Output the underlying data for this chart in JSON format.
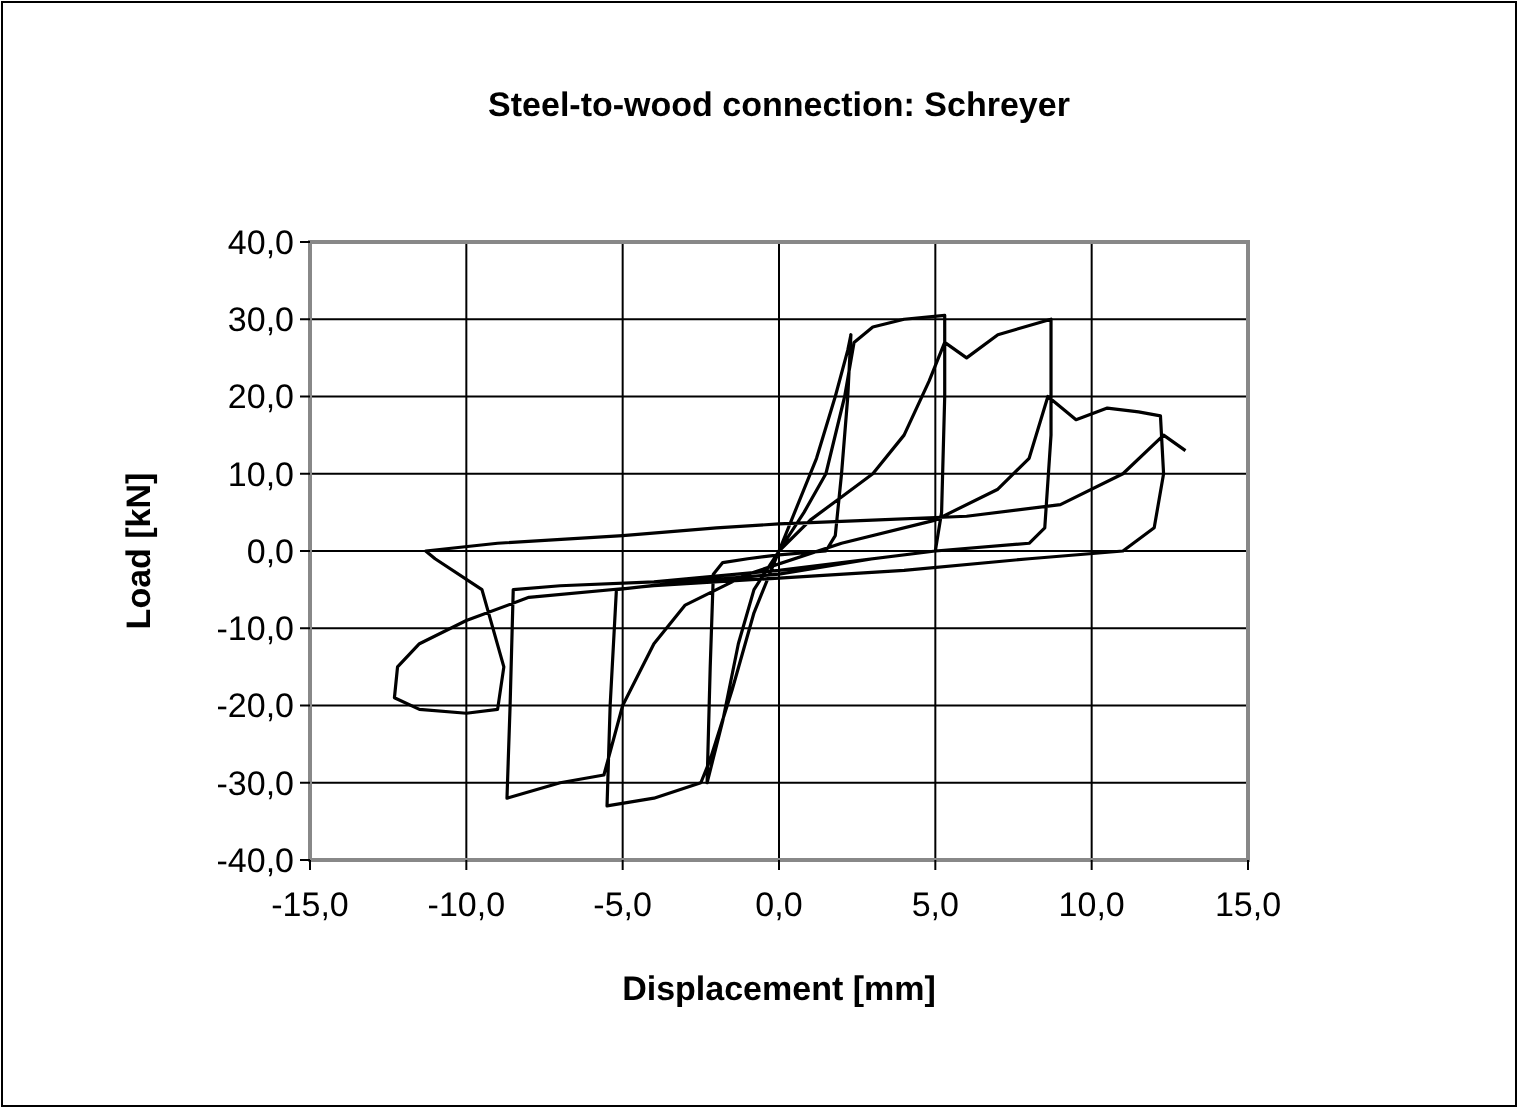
{
  "chart_data": {
    "type": "line",
    "title": "Steel-to-wood connection: Schreyer",
    "xlabel": "Displacement [mm]",
    "ylabel": "Load [kN]",
    "xlim": [
      -15,
      15
    ],
    "ylim": [
      -40,
      40
    ],
    "xticks": [
      {
        "value": -15,
        "label": "-15,0"
      },
      {
        "value": -10,
        "label": "-10,0"
      },
      {
        "value": -5,
        "label": "-5,0"
      },
      {
        "value": 0,
        "label": "0,0"
      },
      {
        "value": 5,
        "label": "5,0"
      },
      {
        "value": 10,
        "label": "10,0"
      },
      {
        "value": 15,
        "label": "15,0"
      }
    ],
    "yticks": [
      {
        "value": -40,
        "label": "-40,0"
      },
      {
        "value": -30,
        "label": "-30,0"
      },
      {
        "value": -20,
        "label": "-20,0"
      },
      {
        "value": -10,
        "label": "-10,0"
      },
      {
        "value": 0,
        "label": "0,0"
      },
      {
        "value": 10,
        "label": "10,0"
      },
      {
        "value": 20,
        "label": "20,0"
      },
      {
        "value": 30,
        "label": "30,0"
      },
      {
        "value": 40,
        "label": "40,0"
      }
    ],
    "grid": true,
    "marker": "none",
    "line_style": "solid",
    "series": [
      {
        "color": "#000000",
        "x": [
          0,
          0.5,
          1.2,
          1.8,
          2.2,
          2.3,
          2.2,
          2.0,
          1.8,
          1.5,
          0,
          -1,
          -1.8,
          -2.1,
          -2.2,
          -2.3,
          -1.8,
          -1.3,
          -0.8,
          0,
          0.8,
          1.5,
          2.1,
          2.4,
          3,
          4,
          5.3,
          5.3,
          5.2,
          5,
          3,
          0,
          -3,
          -5.2,
          -5.4,
          -5.5,
          -4,
          -2.5,
          -2.2,
          -1.5,
          -0.8,
          0,
          1,
          2,
          3,
          4,
          4.8,
          5.3,
          6,
          7,
          8.7,
          8.7,
          8.5,
          8,
          5,
          0,
          -4,
          -7,
          -8.5,
          -8.6,
          -8.7,
          -7,
          -5.6,
          -5,
          -4,
          -3,
          -1,
          2,
          5,
          7,
          8,
          8.6,
          9.5,
          10.5,
          11.5,
          12.2,
          12.3,
          12,
          11,
          8,
          4,
          0,
          -4,
          -8,
          -10,
          -11.5,
          -12.2,
          -12.3,
          -11.5,
          -10,
          -9,
          -8.8,
          -9.5,
          -11,
          -11.3,
          -9,
          -5,
          -2,
          0,
          3,
          6,
          9,
          11,
          12.3,
          13
        ],
        "values": [
          0,
          5,
          12,
          20,
          26,
          28,
          20,
          10,
          2,
          0,
          -0.5,
          -1,
          -1.5,
          -3,
          -15,
          -30,
          -22,
          -12,
          -5,
          0,
          5,
          10,
          20,
          27,
          29,
          30,
          30.5,
          20,
          5,
          0,
          -1,
          -3,
          -4,
          -5,
          -20,
          -33,
          -32,
          -30,
          -27,
          -18,
          -8,
          0,
          4,
          7,
          10,
          15,
          22,
          27,
          25,
          28,
          30,
          15,
          3,
          1,
          0,
          -2.5,
          -4,
          -4.5,
          -5,
          -20,
          -32,
          -30,
          -29,
          -20,
          -12,
          -7,
          -3,
          1,
          4,
          8,
          12,
          20,
          17,
          18.5,
          18,
          17.5,
          10,
          3,
          0,
          -1,
          -2.5,
          -3.5,
          -4.5,
          -6,
          -9,
          -12,
          -15,
          -19,
          -20.5,
          -21,
          -20.5,
          -15,
          -5,
          -1,
          0,
          1,
          2,
          3,
          3.5,
          4,
          4.5,
          6,
          10,
          15,
          13
        ]
      }
    ]
  }
}
